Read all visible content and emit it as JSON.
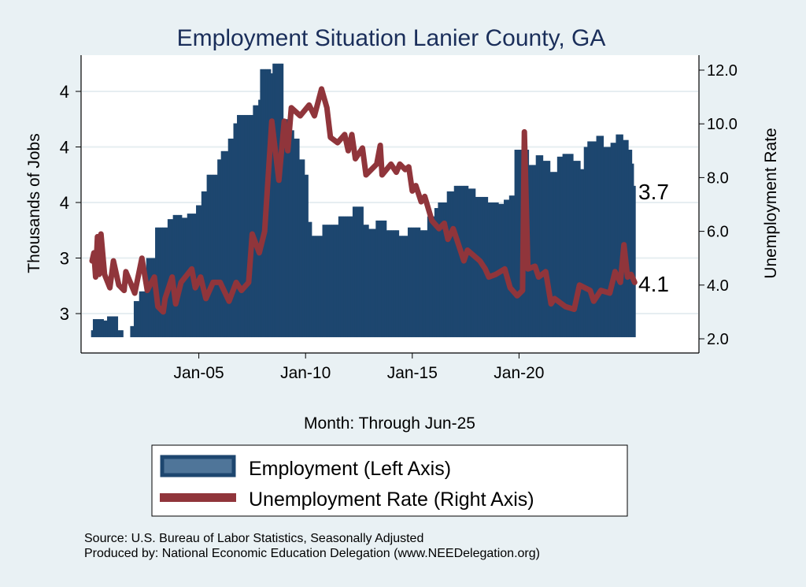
{
  "colors": {
    "background": "#e9f1f4",
    "plot_background": "#ffffff",
    "employment": "#1d466f",
    "employment_legend_inner": "#4f7599",
    "unemployment": "#90353b",
    "title": "#1a2e5a",
    "gridline": "#e6eef1"
  },
  "chart_data": {
    "type": "area+line",
    "title": "Employment Situation Lanier  County, GA",
    "xlabel": "Month: Through Jun-25",
    "ylabel_left": "Thousands of Jobs",
    "ylabel_right": "Unemployment Rate",
    "x_range": [
      "2000-01",
      "2025-06"
    ],
    "x_ticks": [
      {
        "date": "2005-01",
        "label": "Jan-05"
      },
      {
        "date": "2010-01",
        "label": "Jan-10"
      },
      {
        "date": "2015-01",
        "label": "Jan-15"
      },
      {
        "date": "2020-01",
        "label": "Jan-20"
      }
    ],
    "y_left_ticks": [
      {
        "value": 4.0,
        "label": "4"
      },
      {
        "value": 3.8,
        "label": "4"
      },
      {
        "value": 3.6,
        "label": "4"
      },
      {
        "value": 3.4,
        "label": "3"
      },
      {
        "value": 3.2,
        "label": "3"
      }
    ],
    "y_right_ticks": [
      {
        "value": 12,
        "label": "12.0"
      },
      {
        "value": 10,
        "label": "10.0"
      },
      {
        "value": 8,
        "label": "8.0"
      },
      {
        "value": 6,
        "label": "6.0"
      },
      {
        "value": 4,
        "label": "4.0"
      },
      {
        "value": 2,
        "label": "2.0"
      }
    ],
    "grid": "horizontal (left axis)",
    "legend_placement": "bottom",
    "series": [
      {
        "name": "Employment (Left Axis)",
        "axis": "left",
        "style": "area",
        "end_label": "3.7",
        "points": [
          [
            "2000-01",
            3.14
          ],
          [
            "2000-02",
            3.18
          ],
          [
            "2000-08",
            3.175
          ],
          [
            "2000-10",
            3.19
          ],
          [
            "2001-04",
            3.14
          ],
          [
            "2001-07",
            3.11
          ],
          [
            "2001-11",
            3.155
          ],
          [
            "2002-01",
            3.245
          ],
          [
            "2002-04",
            3.28
          ],
          [
            "2002-08",
            3.4
          ],
          [
            "2003-01",
            3.51
          ],
          [
            "2003-08",
            3.54
          ],
          [
            "2003-11",
            3.555
          ],
          [
            "2004-04",
            3.545
          ],
          [
            "2004-07",
            3.56
          ],
          [
            "2004-12",
            3.59
          ],
          [
            "2005-03",
            3.64
          ],
          [
            "2005-06",
            3.7
          ],
          [
            "2005-12",
            3.755
          ],
          [
            "2006-02",
            3.785
          ],
          [
            "2006-06",
            3.83
          ],
          [
            "2006-09",
            3.885
          ],
          [
            "2006-11",
            3.915
          ],
          [
            "2007-08",
            3.95
          ],
          [
            "2007-11",
            3.97
          ],
          [
            "2007-12",
            4.08
          ],
          [
            "2008-06",
            4.065
          ],
          [
            "2008-07",
            4.1
          ],
          [
            "2009-01",
            3.9
          ],
          [
            "2009-04",
            3.86
          ],
          [
            "2009-07",
            3.83
          ],
          [
            "2009-10",
            3.755
          ],
          [
            "2010-01",
            3.7
          ],
          [
            "2010-03",
            3.53
          ],
          [
            "2010-05",
            3.48
          ],
          [
            "2010-11",
            3.52
          ],
          [
            "2011-08",
            3.55
          ],
          [
            "2012-04",
            3.585
          ],
          [
            "2012-10",
            3.52
          ],
          [
            "2013-01",
            3.505
          ],
          [
            "2013-05",
            3.535
          ],
          [
            "2013-11",
            3.5
          ],
          [
            "2014-06",
            3.48
          ],
          [
            "2014-11",
            3.51
          ],
          [
            "2015-06",
            3.5
          ],
          [
            "2015-10",
            3.55
          ],
          [
            "2016-02",
            3.58
          ],
          [
            "2016-04",
            3.6
          ],
          [
            "2016-09",
            3.64
          ],
          [
            "2017-01",
            3.66
          ],
          [
            "2017-09",
            3.65
          ],
          [
            "2018-01",
            3.62
          ],
          [
            "2018-08",
            3.6
          ],
          [
            "2019-02",
            3.595
          ],
          [
            "2019-05",
            3.61
          ],
          [
            "2019-08",
            3.625
          ],
          [
            "2019-11",
            3.79
          ],
          [
            "2020-07",
            3.735
          ],
          [
            "2020-11",
            3.77
          ],
          [
            "2021-03",
            3.75
          ],
          [
            "2021-07",
            3.71
          ],
          [
            "2021-11",
            3.765
          ],
          [
            "2022-02",
            3.775
          ],
          [
            "2022-08",
            3.75
          ],
          [
            "2022-12",
            3.72
          ],
          [
            "2023-02",
            3.8
          ],
          [
            "2023-04",
            3.82
          ],
          [
            "2023-09",
            3.84
          ],
          [
            "2024-01",
            3.8
          ],
          [
            "2024-05",
            3.815
          ],
          [
            "2024-08",
            3.845
          ],
          [
            "2024-12",
            3.825
          ],
          [
            "2025-03",
            3.79
          ],
          [
            "2025-05",
            3.74
          ],
          [
            "2025-06",
            3.66
          ]
        ]
      },
      {
        "name": "Unemployment Rate (Right Axis)",
        "axis": "right",
        "style": "line",
        "end_label": "4.1",
        "points": [
          [
            "2000-01",
            4.9
          ],
          [
            "2000-02",
            5.2
          ],
          [
            "2000-03",
            4.3
          ],
          [
            "2000-04",
            5.8
          ],
          [
            "2000-05",
            4.4
          ],
          [
            "2000-06",
            5.9
          ],
          [
            "2000-08",
            4.4
          ],
          [
            "2000-11",
            3.9
          ],
          [
            "2001-01",
            4.9
          ],
          [
            "2001-04",
            4.0
          ],
          [
            "2001-07",
            3.8
          ],
          [
            "2001-08",
            4.5
          ],
          [
            "2002-01",
            3.7
          ],
          [
            "2002-05",
            5.0
          ],
          [
            "2002-08",
            3.8
          ],
          [
            "2002-12",
            4.3
          ],
          [
            "2003-02",
            3.2
          ],
          [
            "2003-05",
            3.0
          ],
          [
            "2003-06",
            3.5
          ],
          [
            "2003-10",
            4.3
          ],
          [
            "2003-12",
            3.3
          ],
          [
            "2004-03",
            4.1
          ],
          [
            "2004-09",
            4.6
          ],
          [
            "2004-11",
            3.9
          ],
          [
            "2005-02",
            4.3
          ],
          [
            "2005-05",
            3.5
          ],
          [
            "2005-09",
            4.1
          ],
          [
            "2006-01",
            4.1
          ],
          [
            "2006-06",
            3.4
          ],
          [
            "2006-10",
            4.1
          ],
          [
            "2007-01",
            3.8
          ],
          [
            "2007-05",
            4.1
          ],
          [
            "2007-07",
            5.9
          ],
          [
            "2007-11",
            5.2
          ],
          [
            "2008-02",
            6.0
          ],
          [
            "2008-06",
            10.1
          ],
          [
            "2008-10",
            7.9
          ],
          [
            "2009-01",
            10.1
          ],
          [
            "2009-03",
            9.0
          ],
          [
            "2009-05",
            10.6
          ],
          [
            "2009-10",
            10.3
          ],
          [
            "2010-03",
            10.7
          ],
          [
            "2010-06",
            10.3
          ],
          [
            "2010-10",
            11.3
          ],
          [
            "2011-01",
            10.6
          ],
          [
            "2011-03",
            9.5
          ],
          [
            "2011-07",
            9.3
          ],
          [
            "2011-11",
            9.6
          ],
          [
            "2012-01",
            9.0
          ],
          [
            "2012-03",
            9.6
          ],
          [
            "2012-05",
            8.7
          ],
          [
            "2012-09",
            9.1
          ],
          [
            "2012-11",
            8.1
          ],
          [
            "2013-05",
            8.5
          ],
          [
            "2013-07",
            9.2
          ],
          [
            "2013-08",
            8.1
          ],
          [
            "2014-01",
            8.5
          ],
          [
            "2014-04",
            8.2
          ],
          [
            "2014-06",
            8.5
          ],
          [
            "2014-09",
            8.3
          ],
          [
            "2014-11",
            8.4
          ],
          [
            "2015-01",
            7.5
          ],
          [
            "2015-03",
            7.7
          ],
          [
            "2015-06",
            7.1
          ],
          [
            "2015-08",
            7.3
          ],
          [
            "2015-12",
            6.4
          ],
          [
            "2016-04",
            6.1
          ],
          [
            "2016-07",
            6.3
          ],
          [
            "2016-09",
            5.7
          ],
          [
            "2016-12",
            6.1
          ],
          [
            "2017-03",
            5.5
          ],
          [
            "2017-06",
            4.9
          ],
          [
            "2017-08",
            5.3
          ],
          [
            "2018-03",
            4.9
          ],
          [
            "2018-06",
            4.6
          ],
          [
            "2018-08",
            4.3
          ],
          [
            "2018-12",
            4.4
          ],
          [
            "2019-05",
            4.6
          ],
          [
            "2019-08",
            3.9
          ],
          [
            "2019-12",
            3.6
          ],
          [
            "2020-03",
            3.8
          ],
          [
            "2020-04",
            9.7
          ],
          [
            "2020-06",
            4.6
          ],
          [
            "2020-10",
            4.7
          ],
          [
            "2020-12",
            4.3
          ],
          [
            "2021-04",
            4.5
          ],
          [
            "2021-07",
            3.3
          ],
          [
            "2021-09",
            3.5
          ],
          [
            "2022-03",
            3.2
          ],
          [
            "2022-08",
            3.1
          ],
          [
            "2022-11",
            4.0
          ],
          [
            "2023-05",
            3.8
          ],
          [
            "2023-07",
            3.4
          ],
          [
            "2023-11",
            3.8
          ],
          [
            "2024-04",
            3.7
          ],
          [
            "2024-07",
            4.5
          ],
          [
            "2024-10",
            4.1
          ],
          [
            "2024-12",
            5.5
          ],
          [
            "2025-02",
            4.3
          ],
          [
            "2025-04",
            4.4
          ],
          [
            "2025-06",
            4.1
          ]
        ]
      }
    ]
  },
  "legend": {
    "employment_label": "Employment (Left Axis)",
    "unemployment_label": "Unemployment Rate (Right Axis)"
  },
  "footer": {
    "source": "Source: U.S. Bureau of Labor Statistics, Seasonally Adjusted",
    "produced_by": "Produced by: National Economic Education Delegation (www.NEEDelegation.org)"
  }
}
